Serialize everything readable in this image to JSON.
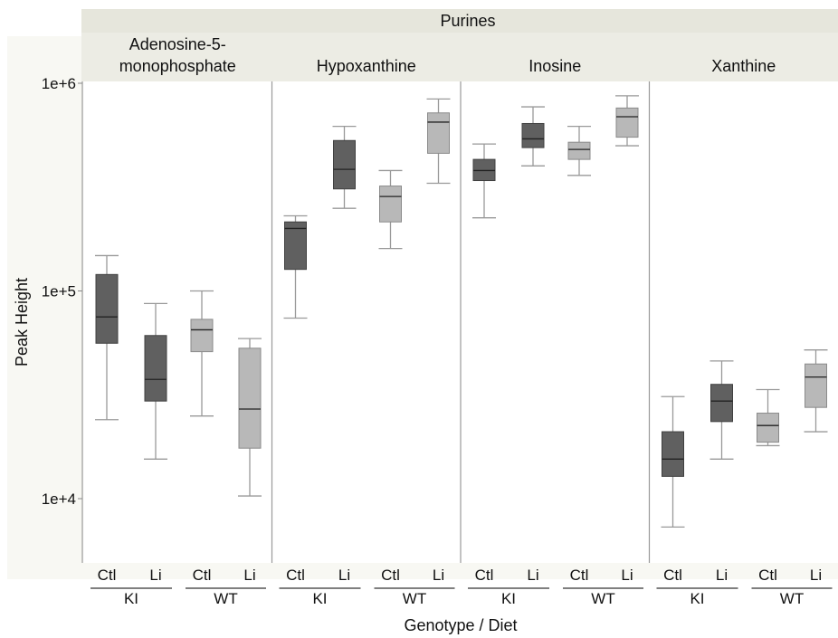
{
  "chart_data": {
    "type": "boxplot",
    "y_scale": "log10",
    "ylim": [
      5000,
      1200000
    ],
    "yticks": [
      {
        "value": 10000,
        "label": "1e+4"
      },
      {
        "value": 100000,
        "label": "1e+5"
      },
      {
        "value": 1000000,
        "label": "1e+6"
      }
    ],
    "group_header": "Purines",
    "xlabel": "Genotype / Diet",
    "ylabel": "Peak Height",
    "diet_labels": [
      "Ctl",
      "Li"
    ],
    "genotype_labels": [
      "KI",
      "WT"
    ],
    "colors": {
      "KI": "#606060",
      "WT": "#b8b8b8"
    },
    "panels": [
      {
        "name": "Adenosine-5-\nmonophosphate",
        "boxes": [
          {
            "genotype": "KI",
            "diet": "Ctl",
            "min": 24000,
            "q1": 56000,
            "median": 75000,
            "q3": 120000,
            "max": 148000
          },
          {
            "genotype": "KI",
            "diet": "Li",
            "min": 15500,
            "q1": 29500,
            "median": 37500,
            "q3": 61000,
            "max": 87000
          },
          {
            "genotype": "WT",
            "diet": "Ctl",
            "min": 25000,
            "q1": 51000,
            "median": 65000,
            "q3": 73000,
            "max": 100000
          },
          {
            "genotype": "WT",
            "diet": "Li",
            "min": 10300,
            "q1": 17500,
            "median": 27000,
            "q3": 53000,
            "max": 59000
          }
        ]
      },
      {
        "name": "Hypoxanthine",
        "boxes": [
          {
            "genotype": "KI",
            "diet": "Ctl",
            "min": 74000,
            "q1": 127000,
            "median": 200000,
            "q3": 215000,
            "max": 230000
          },
          {
            "genotype": "KI",
            "diet": "Li",
            "min": 250000,
            "q1": 310000,
            "median": 385000,
            "q3": 530000,
            "max": 620000
          },
          {
            "genotype": "WT",
            "diet": "Ctl",
            "min": 160000,
            "q1": 215000,
            "median": 285000,
            "q3": 320000,
            "max": 380000
          },
          {
            "genotype": "WT",
            "diet": "Li",
            "min": 330000,
            "q1": 460000,
            "median": 650000,
            "q3": 720000,
            "max": 840000
          }
        ]
      },
      {
        "name": "Inosine",
        "boxes": [
          {
            "genotype": "KI",
            "diet": "Ctl",
            "min": 225000,
            "q1": 340000,
            "median": 380000,
            "q3": 430000,
            "max": 510000
          },
          {
            "genotype": "KI",
            "diet": "Li",
            "min": 400000,
            "q1": 490000,
            "median": 540000,
            "q3": 640000,
            "max": 770000
          },
          {
            "genotype": "WT",
            "diet": "Ctl",
            "min": 360000,
            "q1": 430000,
            "median": 480000,
            "q3": 520000,
            "max": 620000
          },
          {
            "genotype": "WT",
            "diet": "Li",
            "min": 500000,
            "q1": 550000,
            "median": 690000,
            "q3": 760000,
            "max": 870000
          }
        ]
      },
      {
        "name": "Xanthine",
        "boxes": [
          {
            "genotype": "KI",
            "diet": "Ctl",
            "min": 7300,
            "q1": 12800,
            "median": 15500,
            "q3": 21000,
            "max": 31000
          },
          {
            "genotype": "KI",
            "diet": "Li",
            "min": 15500,
            "q1": 23500,
            "median": 29500,
            "q3": 35500,
            "max": 46000
          },
          {
            "genotype": "WT",
            "diet": "Ctl",
            "min": 18000,
            "q1": 18700,
            "median": 22500,
            "q3": 25800,
            "max": 33500
          },
          {
            "genotype": "WT",
            "diet": "Li",
            "min": 21000,
            "q1": 27500,
            "median": 38500,
            "q3": 44500,
            "max": 52000
          }
        ]
      }
    ]
  }
}
